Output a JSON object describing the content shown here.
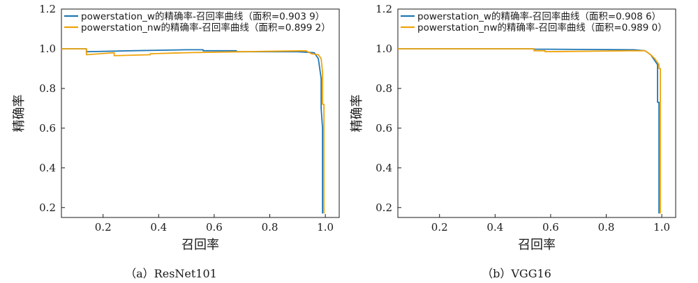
{
  "chart_data": [
    {
      "type": "line",
      "caption": "（a）ResNet101",
      "xlabel": "召回率",
      "ylabel": "精确率",
      "xlim": [
        0.05,
        1.05
      ],
      "ylim": [
        0.15,
        1.2
      ],
      "xticks": [
        0.2,
        0.4,
        0.6,
        0.8,
        1.0
      ],
      "xtick_labels": [
        "0.2",
        "0.4",
        "0.6",
        "0.8",
        "1.0"
      ],
      "yticks": [
        0.2,
        0.4,
        0.6,
        0.8,
        1.0,
        1.2
      ],
      "ytick_labels": [
        "0.2",
        "0.4",
        "0.6",
        "0.8",
        "1.0",
        "1.2"
      ],
      "legend_position": "top-left",
      "series": [
        {
          "name": "powerstation_w的精确率-召回率曲线（面积=0.903 9）",
          "color": "#1f77b4",
          "x": [
            0.05,
            0.14,
            0.14,
            0.3,
            0.5,
            0.56,
            0.56,
            0.68,
            0.68,
            0.9,
            0.96,
            0.975,
            0.98,
            0.985,
            0.985,
            0.99,
            0.99
          ],
          "y": [
            1.0,
            1.0,
            0.985,
            0.99,
            0.995,
            0.995,
            0.99,
            0.99,
            0.985,
            0.985,
            0.98,
            0.95,
            0.9,
            0.85,
            0.7,
            0.6,
            0.17
          ]
        },
        {
          "name": "powerstation_nw的精确率-召回率曲线（面积=0.899 2）",
          "color": "#f0a30a",
          "x": [
            0.05,
            0.14,
            0.14,
            0.24,
            0.24,
            0.37,
            0.37,
            0.5,
            0.7,
            0.93,
            0.95,
            0.975,
            0.985,
            0.99,
            0.99,
            0.995,
            0.995
          ],
          "y": [
            1.0,
            1.0,
            0.97,
            0.98,
            0.965,
            0.97,
            0.975,
            0.98,
            0.985,
            0.99,
            0.975,
            0.97,
            0.95,
            0.88,
            0.72,
            0.72,
            0.17
          ]
        }
      ]
    },
    {
      "type": "line",
      "caption": "（b）VGG16",
      "xlabel": "召回率",
      "ylabel": "精确率",
      "xlim": [
        0.05,
        1.05
      ],
      "ylim": [
        0.15,
        1.2
      ],
      "xticks": [
        0.2,
        0.4,
        0.6,
        0.8,
        1.0
      ],
      "xtick_labels": [
        "0.2",
        "0.4",
        "0.6",
        "0.8",
        "1.0"
      ],
      "yticks": [
        0.2,
        0.4,
        0.6,
        0.8,
        1.0,
        1.2
      ],
      "ytick_labels": [
        "0.2",
        "0.4",
        "0.6",
        "0.8",
        "1.0",
        "1.2"
      ],
      "legend_position": "top-left",
      "series": [
        {
          "name": "powerstation_w的精确率-召回率曲线（面积=0.908 6）",
          "color": "#1f77b4",
          "x": [
            0.05,
            0.54,
            0.54,
            0.9,
            0.94,
            0.96,
            0.97,
            0.98,
            0.985,
            0.985,
            0.99,
            0.99
          ],
          "y": [
            1.0,
            1.0,
            0.998,
            0.995,
            0.99,
            0.97,
            0.95,
            0.93,
            0.92,
            0.73,
            0.73,
            0.17
          ]
        },
        {
          "name": "powerstation_nw的精确率-召回率曲线（面积=0.989 0）",
          "color": "#f0a30a",
          "x": [
            0.05,
            0.54,
            0.54,
            0.58,
            0.58,
            0.88,
            0.94,
            0.96,
            0.975,
            0.99,
            0.99,
            0.995,
            0.995
          ],
          "y": [
            1.0,
            1.0,
            0.99,
            0.99,
            0.985,
            0.99,
            0.99,
            0.97,
            0.95,
            0.92,
            0.9,
            0.9,
            0.17
          ]
        }
      ]
    }
  ]
}
